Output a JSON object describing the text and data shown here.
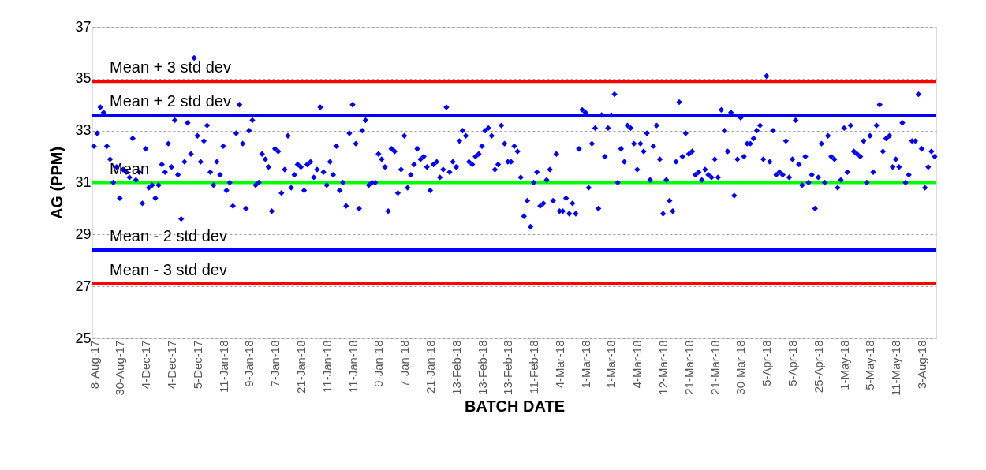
{
  "chart_data": {
    "type": "scatter",
    "xlabel": "BATCH DATE",
    "ylabel": "AG (PPM)",
    "categories": [
      "8-Aug-17",
      null,
      null,
      null,
      null,
      null,
      null,
      null,
      "30-Aug-17",
      null,
      null,
      null,
      null,
      null,
      null,
      null,
      "4-Dec-17",
      null,
      null,
      null,
      null,
      null,
      null,
      null,
      "4-Dec-17",
      null,
      null,
      null,
      null,
      null,
      null,
      null,
      "5-Dec-17",
      null,
      null,
      null,
      null,
      null,
      null,
      null,
      "11-Jan-18",
      null,
      null,
      null,
      null,
      null,
      null,
      null,
      "9-Jan-18",
      null,
      null,
      null,
      null,
      null,
      null,
      null,
      "7-Jan-18",
      null,
      null,
      null,
      null,
      null,
      null,
      null,
      "21-Jan-18",
      null,
      null,
      null,
      null,
      null,
      null,
      null,
      "11-Jan-18",
      null,
      null,
      null,
      null,
      null,
      null,
      null,
      "11-Jan-18",
      null,
      null,
      null,
      null,
      null,
      null,
      null,
      "9-Jan-18",
      null,
      null,
      null,
      null,
      null,
      null,
      null,
      "7-Jan-18",
      null,
      null,
      null,
      null,
      null,
      null,
      null,
      "21-Jan-18",
      null,
      null,
      null,
      null,
      null,
      null,
      null,
      "13-Feb-18",
      null,
      null,
      null,
      null,
      null,
      null,
      null,
      "13-Feb-18",
      null,
      null,
      null,
      null,
      null,
      null,
      null,
      "13-Feb-18",
      null,
      null,
      null,
      null,
      null,
      null,
      null,
      "11-Feb-18",
      null,
      null,
      null,
      null,
      null,
      null,
      null,
      "4-Mar-18",
      null,
      null,
      null,
      null,
      null,
      null,
      null,
      "1-Mar-18",
      null,
      null,
      null,
      null,
      null,
      null,
      null,
      "1-Mar-18",
      null,
      null,
      null,
      null,
      null,
      null,
      null,
      "4-Mar-18",
      null,
      null,
      null,
      null,
      null,
      null,
      null,
      "12-Mar-18",
      null,
      null,
      null,
      null,
      null,
      null,
      null,
      "21-Mar-18",
      null,
      null,
      null,
      null,
      null,
      null,
      null,
      "21-Mar-18",
      null,
      null,
      null,
      null,
      null,
      null,
      null,
      "30-Mar-18",
      null,
      null,
      null,
      null,
      null,
      null,
      null,
      "5-Apr-18",
      null,
      null,
      null,
      null,
      null,
      null,
      null,
      "5-Apr-18",
      null,
      null,
      null,
      null,
      null,
      null,
      null,
      "25-Apr-18",
      null,
      null,
      null,
      null,
      null,
      null,
      null,
      "1-May-18",
      null,
      null,
      null,
      null,
      null,
      null,
      null,
      "5-May-18",
      null,
      null,
      null,
      null,
      null,
      null,
      null,
      "11-May-18",
      null,
      null,
      null,
      null,
      null,
      null,
      null,
      "3-Aug-18",
      null,
      null,
      null,
      null
    ],
    "series": [
      {
        "color": "#0000ff",
        "values": [
          32.4,
          32.9,
          33.9,
          33.7,
          32.4,
          31.9,
          31.0,
          31.6,
          30.4,
          31.5,
          31.4,
          31.2,
          32.7,
          31.1,
          31.4,
          30.2,
          32.3,
          30.8,
          30.9,
          30.4,
          30.9,
          31.7,
          31.4,
          32.5,
          31.6,
          33.4,
          31.3,
          29.6,
          31.8,
          33.3,
          32.1,
          35.8,
          32.8,
          31.8,
          32.6,
          33.2,
          31.4,
          30.9,
          31.8,
          31.3,
          32.4,
          30.7,
          31.0,
          30.1,
          32.9,
          34.0,
          32.5,
          30.0,
          33.0,
          33.4,
          30.9,
          31.0,
          32.1,
          31.9,
          31.6,
          29.9,
          32.3,
          32.2,
          30.6,
          31.5,
          32.8,
          30.8,
          31.3,
          31.7,
          31.6,
          30.7,
          31.7,
          31.8,
          31.2,
          31.5,
          33.9,
          31.4,
          30.9,
          31.8,
          31.3,
          32.4,
          30.7,
          31.0,
          30.1,
          32.9,
          34.0,
          32.5,
          30.0,
          33.0,
          33.4,
          30.9,
          31.0,
          31.0,
          32.1,
          31.9,
          31.6,
          29.9,
          32.3,
          32.2,
          30.6,
          31.5,
          32.8,
          30.8,
          31.3,
          31.7,
          32.3,
          31.9,
          32.0,
          31.6,
          30.7,
          31.7,
          31.8,
          31.2,
          31.5,
          33.9,
          31.4,
          31.8,
          31.6,
          32.6,
          33.0,
          32.8,
          31.8,
          31.7,
          32.0,
          32.1,
          32.4,
          33.0,
          33.1,
          32.8,
          31.5,
          31.7,
          33.2,
          32.5,
          31.8,
          31.8,
          32.4,
          32.2,
          31.2,
          29.7,
          30.3,
          29.3,
          31.0,
          31.4,
          30.1,
          30.2,
          31.1,
          31.5,
          30.3,
          32.1,
          29.9,
          29.9,
          30.4,
          29.8,
          30.2,
          29.8,
          32.3,
          33.8,
          33.7,
          30.8,
          32.5,
          33.1,
          30.0,
          33.6,
          32.0,
          33.1,
          33.6,
          34.4,
          31.0,
          32.3,
          31.8,
          33.2,
          33.1,
          32.5,
          31.5,
          32.5,
          32.2,
          32.9,
          31.1,
          32.4,
          33.2,
          31.9,
          29.8,
          31.1,
          30.3,
          29.9,
          31.8,
          34.1,
          32.0,
          32.9,
          32.1,
          32.2,
          31.3,
          31.4,
          31.1,
          31.5,
          31.3,
          31.2,
          31.9,
          31.2,
          33.8,
          33.0,
          32.2,
          33.7,
          30.5,
          31.9,
          33.5,
          32.0,
          32.5,
          32.5,
          32.7,
          33.0,
          33.2,
          31.9,
          35.1,
          31.8,
          33.0,
          31.3,
          31.4,
          31.3,
          32.6,
          31.2,
          31.9,
          33.4,
          31.7,
          30.9,
          32.0,
          31.0,
          31.3,
          30.0,
          31.2,
          32.5,
          31.0,
          32.8,
          32.0,
          31.9,
          30.8,
          31.1,
          33.1,
          31.4,
          33.2,
          32.2,
          32.1,
          32.0,
          32.6,
          31.0,
          32.8,
          31.4,
          33.2,
          34.0,
          32.2,
          32.7,
          32.8,
          31.6,
          31.9,
          31.6,
          33.3,
          31.0,
          31.3,
          32.6,
          32.6,
          34.4,
          32.3,
          30.8,
          31.6,
          32.2,
          32.0
        ]
      }
    ],
    "ylim": [
      25,
      37
    ],
    "yticks": [
      25,
      27,
      29,
      31,
      33,
      35,
      37
    ],
    "grid": "y",
    "marker": "diamond",
    "ref_lines": [
      {
        "axis": "y",
        "value": 34.9,
        "label": "Mean + 3 std dev",
        "color": "#ff0000"
      },
      {
        "axis": "y",
        "value": 33.6,
        "label": "Mean + 2 std dev",
        "color": "#0000ff"
      },
      {
        "axis": "y",
        "value": 31.0,
        "label": "Mean",
        "color": "#00ff00"
      },
      {
        "axis": "y",
        "value": 28.4,
        "label": "Mean - 2 std dev",
        "color": "#0000ff"
      },
      {
        "axis": "y",
        "value": 27.1,
        "label": "Mean - 3 std dev",
        "color": "#ff0000"
      }
    ]
  }
}
